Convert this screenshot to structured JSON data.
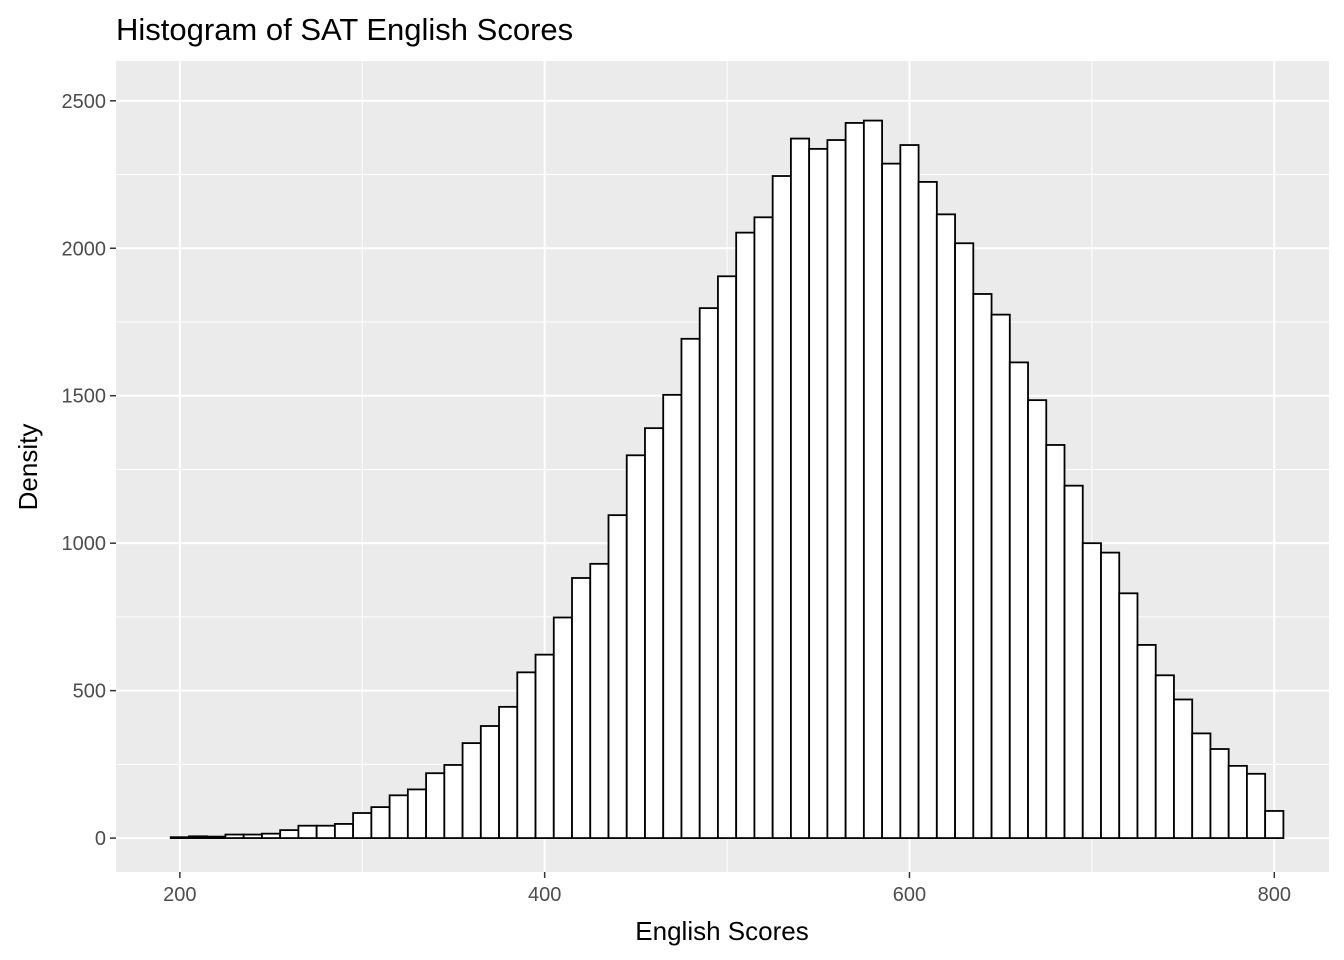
{
  "chart_data": {
    "type": "bar",
    "title": "Histogram of SAT English Scores",
    "xlabel": "English Scores",
    "ylabel": "Density",
    "xlim": [
      165,
      830
    ],
    "ylim": [
      -115,
      2635
    ],
    "x_ticks": [
      200,
      400,
      600,
      800
    ],
    "y_ticks": [
      0,
      500,
      1000,
      1500,
      2000,
      2500
    ],
    "x_tick_labels": [
      "200",
      "400",
      "600",
      "800"
    ],
    "y_tick_labels": [
      "0",
      "500",
      "1000",
      "1500",
      "2000",
      "2500"
    ],
    "grid": true,
    "bins": {
      "start": 195,
      "width": 10,
      "counts": [
        3,
        6,
        5,
        12,
        12,
        15,
        27,
        42,
        42,
        48,
        85,
        105,
        145,
        165,
        220,
        248,
        322,
        380,
        445,
        562,
        622,
        748,
        882,
        930,
        1095,
        1298,
        1390,
        1503,
        1693,
        1797,
        1905,
        2053,
        2105,
        2245,
        2372,
        2337,
        2367,
        2425,
        2433,
        2287,
        2350,
        2225,
        2115,
        2017,
        1845,
        1775,
        1613,
        1485,
        1333,
        1195,
        1000,
        968,
        830,
        655,
        552,
        470,
        355,
        302,
        245,
        218,
        92
      ]
    }
  }
}
